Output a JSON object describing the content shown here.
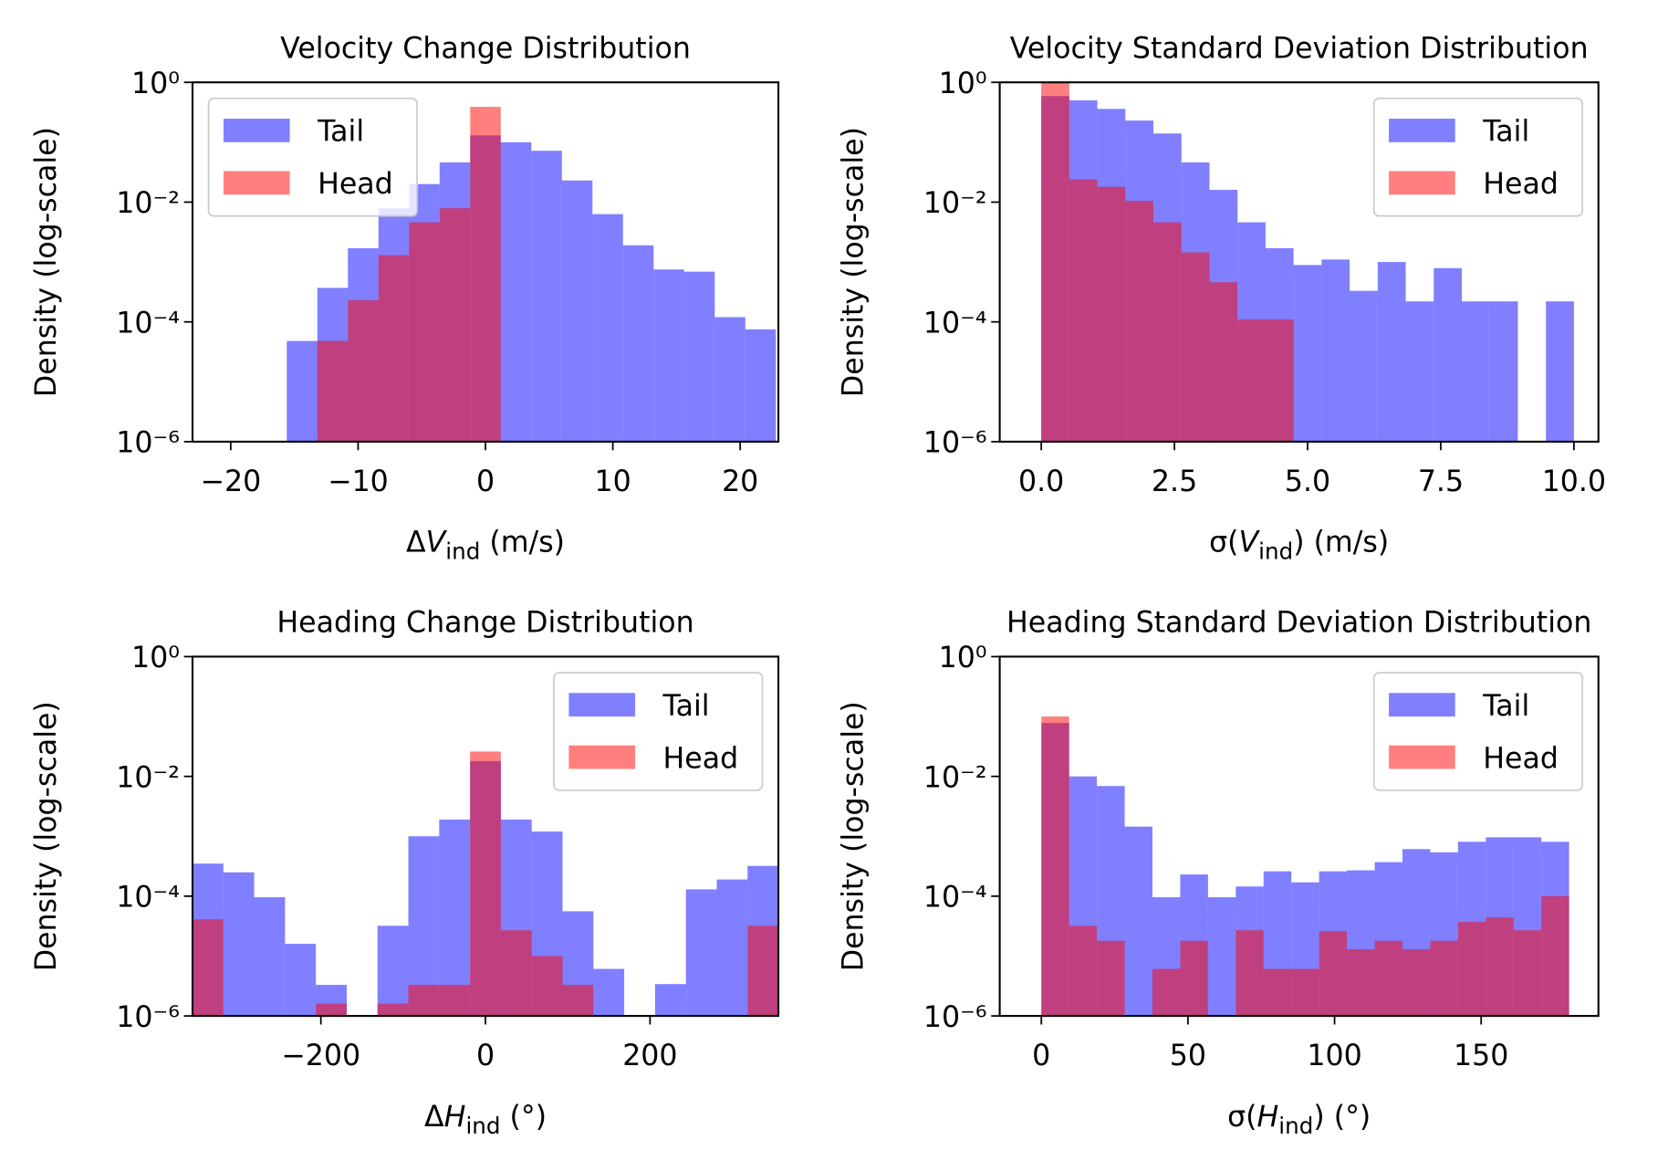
{
  "chart_data": [
    {
      "type": "histogram",
      "title": "Velocity Change Distribution",
      "xlabel": [
        "Δ",
        "V",
        "ind",
        " (m/s)"
      ],
      "ylabel": "Density (log-scale)",
      "xlim": [
        -23,
        23
      ],
      "xticks": [
        {
          "value": -20,
          "label": "−20"
        },
        {
          "value": -10,
          "label": "−10"
        },
        0,
        10,
        20
      ],
      "ylim": [
        1e-06,
        1
      ],
      "yscale": "log",
      "yticks": [
        {
          "value": 1e-06,
          "label": "10⁻⁶"
        },
        {
          "value": 0.0001,
          "label": "10⁻⁴"
        },
        {
          "value": 0.01,
          "label": "10⁻²"
        },
        {
          "value": 1,
          "label": "10⁰"
        }
      ],
      "legend": "upper left",
      "series": [
        {
          "name": "Tail",
          "color": "#0000ff",
          "alpha": 0.5,
          "bins": [
            -15.6,
            -13.2,
            -10.8,
            -8.4,
            -6.0,
            -3.6,
            -1.2,
            1.2,
            3.6,
            6.0,
            8.4,
            10.8,
            13.2,
            15.6,
            18.0,
            20.4,
            22.8
          ],
          "values": [
            4.8e-05,
            0.00037,
            0.0017,
            0.0079,
            0.02,
            0.046,
            0.13,
            0.1,
            0.072,
            0.023,
            0.0063,
            0.0019,
            0.00075,
            0.00069,
            0.00012,
            7.5e-05
          ]
        },
        {
          "name": "Head",
          "color": "#ff0000",
          "alpha": 0.5,
          "bins": [
            -13.2,
            -10.8,
            -8.4,
            -6.0,
            -3.6,
            -1.2,
            1.2
          ],
          "values": [
            4.8e-05,
            0.00023,
            0.0013,
            0.0046,
            0.0079,
            0.39
          ]
        }
      ]
    },
    {
      "type": "histogram",
      "title": "Velocity Standard Deviation Distribution",
      "xlabel": [
        "σ(",
        "V",
        "ind",
        ") (m/s)"
      ],
      "ylabel": "Density (log-scale)",
      "xlim": [
        -0.78,
        10.46
      ],
      "xticks": [
        {
          "value": 0,
          "label": "0.0"
        },
        2.5,
        {
          "value": 5,
          "label": "5.0"
        },
        7.5,
        {
          "value": 10,
          "label": "10.0"
        }
      ],
      "ylim": [
        1e-06,
        1
      ],
      "yscale": "log",
      "yticks": [
        {
          "value": 1e-06,
          "label": "10⁻⁶"
        },
        {
          "value": 0.0001,
          "label": "10⁻⁴"
        },
        {
          "value": 0.01,
          "label": "10⁻²"
        },
        {
          "value": 1,
          "label": "10⁰"
        }
      ],
      "legend": "upper right",
      "series": [
        {
          "name": "Tail",
          "color": "#0000ff",
          "alpha": 0.5,
          "bins": [
            0,
            0.526,
            1.053,
            1.579,
            2.105,
            2.632,
            3.158,
            3.684,
            4.211,
            4.737,
            5.263,
            5.789,
            6.316,
            6.842,
            7.368,
            7.895,
            8.421,
            8.947,
            9.474,
            10
          ],
          "values": [
            0.59,
            0.5,
            0.36,
            0.23,
            0.14,
            0.046,
            0.016,
            0.0046,
            0.0017,
            0.00089,
            0.0011,
            0.00033,
            0.001,
            0.00022,
            0.00079,
            0.00022,
            0.00022,
            0,
            0.00022
          ]
        },
        {
          "name": "Head",
          "color": "#ff0000",
          "alpha": 0.5,
          "bins": [
            0,
            0.526,
            1.053,
            1.579,
            2.105,
            2.632,
            3.158,
            3.684,
            4.211,
            4.737
          ],
          "values": [
            1.0,
            0.024,
            0.018,
            0.0105,
            0.0046,
            0.00145,
            0.00046,
            0.00011,
            0.00011
          ]
        }
      ]
    },
    {
      "type": "histogram",
      "title": "Heading Change Distribution",
      "xlabel": [
        "Δ",
        "H",
        "ind",
        " (°)"
      ],
      "ylabel": "Density (log-scale)",
      "xlim": [
        -356,
        356
      ],
      "xticks": [
        {
          "value": -200,
          "label": "−200"
        },
        0,
        200
      ],
      "ylim": [
        1e-06,
        1
      ],
      "yscale": "log",
      "yticks": [
        {
          "value": 1e-06,
          "label": "10⁻⁶"
        },
        {
          "value": 0.0001,
          "label": "10⁻⁴"
        },
        {
          "value": 0.01,
          "label": "10⁻²"
        },
        {
          "value": 1,
          "label": "10⁰"
        }
      ],
      "legend": "upper right",
      "series": [
        {
          "name": "Tail",
          "color": "#0000ff",
          "alpha": 0.5,
          "bins": [
            -356,
            -318.5,
            -281.1,
            -243.6,
            -206.1,
            -168.6,
            -131.2,
            -93.7,
            -56.2,
            -18.7,
            18.7,
            56.2,
            93.7,
            131.2,
            168.6,
            206.1,
            243.6,
            281.1,
            318.5,
            356
          ],
          "values": [
            0.00035,
            0.00025,
            9.6e-05,
            1.6e-05,
            3.3e-06,
            0,
            3.2e-05,
            0.001,
            0.0019,
            0.018,
            0.0019,
            0.0012,
            5.6e-05,
            6.1e-06,
            0,
            3.4e-06,
            0.00013,
            0.00019,
            0.00032
          ]
        },
        {
          "name": "Head",
          "color": "#ff0000",
          "alpha": 0.5,
          "bins": [
            -356,
            -318.5,
            -281.1,
            -243.6,
            -206.1,
            -168.6,
            -131.2,
            -93.7,
            -56.2,
            -18.7,
            18.7,
            56.2,
            93.7,
            131.2,
            168.6,
            206.1,
            243.6,
            281.1,
            318.5,
            356
          ],
          "values": [
            4.1e-05,
            0,
            0,
            0,
            1.6e-06,
            0,
            1.6e-06,
            3.3e-06,
            3.3e-06,
            0.026,
            2.7e-05,
            1e-05,
            3.3e-06,
            0,
            0,
            0,
            0,
            0,
            3.2e-05
          ]
        }
      ]
    },
    {
      "type": "histogram",
      "title": "Heading Standard Deviation Distribution",
      "xlabel": [
        "σ(",
        "H",
        "ind",
        ") (°)"
      ],
      "ylabel": "Density (log-scale)",
      "xlim": [
        -14.2,
        190
      ],
      "xticks": [
        0,
        50,
        100,
        150
      ],
      "ylim": [
        1e-06,
        1
      ],
      "yscale": "log",
      "yticks": [
        {
          "value": 1e-06,
          "label": "10⁻⁶"
        },
        {
          "value": 0.0001,
          "label": "10⁻⁴"
        },
        {
          "value": 0.01,
          "label": "10⁻²"
        },
        {
          "value": 1,
          "label": "10⁰"
        }
      ],
      "legend": "upper right",
      "series": [
        {
          "name": "Tail",
          "color": "#0000ff",
          "alpha": 0.5,
          "bins": [
            0,
            9.474,
            18.947,
            28.421,
            37.895,
            47.368,
            56.842,
            66.316,
            75.789,
            85.263,
            94.737,
            104.211,
            113.684,
            123.158,
            132.632,
            142.105,
            151.579,
            161.053,
            170.526,
            180
          ],
          "values": [
            0.078,
            0.01,
            0.0069,
            0.00145,
            9.6e-05,
            0.00023,
            9.6e-05,
            0.000145,
            0.00026,
            0.00017,
            0.00026,
            0.00027,
            0.00037,
            0.00061,
            0.00054,
            0.00081,
            0.00096,
            0.00096,
            0.00081
          ]
        },
        {
          "name": "Head",
          "color": "#ff0000",
          "alpha": 0.5,
          "bins": [
            0,
            9.474,
            18.947,
            28.421,
            37.895,
            47.368,
            56.842,
            66.316,
            75.789,
            85.263,
            94.737,
            104.211,
            113.684,
            123.158,
            132.632,
            142.105,
            151.579,
            161.053,
            170.526,
            180
          ],
          "values": [
            0.1,
            3.2e-05,
            1.8e-05,
            0,
            6.1e-06,
            1.8e-05,
            0,
            2.7e-05,
            6.1e-06,
            6.1e-06,
            2.6e-05,
            1.3e-05,
            1.8e-05,
            1.3e-05,
            1.8e-05,
            3.7e-05,
            4.4e-05,
            2.7e-05,
            0.0001
          ]
        }
      ]
    }
  ]
}
